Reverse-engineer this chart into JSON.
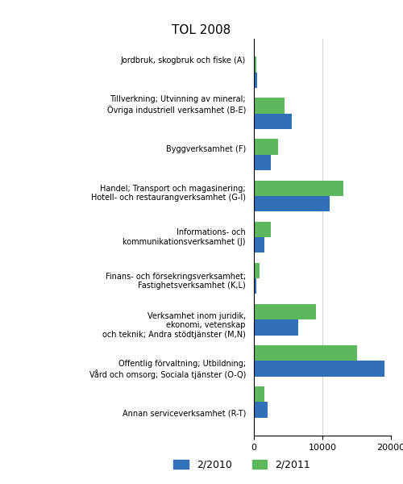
{
  "title": "TOL 2008",
  "categories": [
    "Jordbruk, skogbruk och fiske (A)",
    "Tillverkning; Utvinning av mineral;\nÖvriga industriell verksamhet (B-E)",
    "Byggverksamhet (F)",
    "Handel; Transport och magasinering;\nHotell- och restaurangverksamhet (G-I)",
    "Informations- och\nkommunikationsverksamhet (J)",
    "Finans- och försekringsverksamhet;\nFastighetsverksamhet (K,L)",
    "Verksamhet inom juridik,\nekonomi, vetenskap\noch teknik; Andra stödtjänster (M,N)",
    "Offentlig förvaltning; Utbildning;\nVård och omsorg; Sociala tjänster (O-Q)",
    "Annan serviceverksamhet (R-T)"
  ],
  "values_2010": [
    500,
    5500,
    2500,
    11000,
    1500,
    400,
    6500,
    19000,
    2000
  ],
  "values_2011": [
    300,
    4500,
    3500,
    13000,
    2500,
    800,
    9000,
    15000,
    1500
  ],
  "color_2010": "#3070b8",
  "color_2011": "#5cb85c",
  "legend_labels": [
    "2/2010",
    "2/2011"
  ],
  "xlim": [
    0,
    20000
  ],
  "xticks": [
    0,
    10000,
    20000
  ],
  "figsize": [
    5.0,
    6.0
  ],
  "dpi": 100
}
